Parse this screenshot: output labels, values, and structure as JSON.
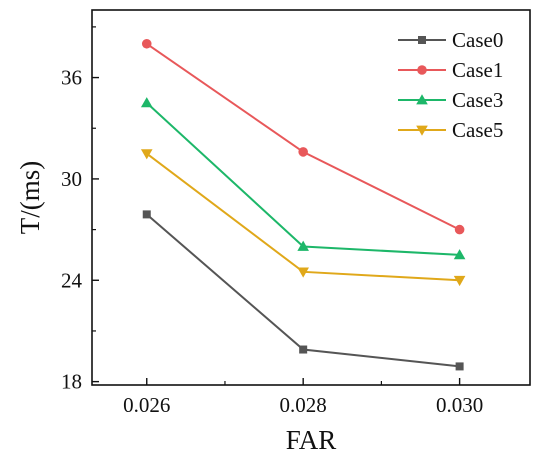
{
  "chart_data": {
    "type": "line",
    "title": "",
    "xlabel": "FAR",
    "ylabel": "T/(ms)",
    "x": [
      0.026,
      0.028,
      0.03
    ],
    "x_tick_labels": [
      "0.026",
      "0.028",
      "0.030"
    ],
    "xlim": [
      0.0253,
      0.0309
    ],
    "ylim": [
      17.8,
      40.0
    ],
    "y_ticks": [
      18,
      24,
      30,
      36
    ],
    "y_tick_labels": [
      "18",
      "24",
      "30",
      "36"
    ],
    "grid": false,
    "legend_position": "top-right",
    "series": [
      {
        "name": "Case0",
        "color": "#555555",
        "marker": "square",
        "values": [
          27.9,
          19.9,
          18.9
        ]
      },
      {
        "name": "Case1",
        "color": "#e8585a",
        "marker": "circle",
        "values": [
          38.0,
          31.6,
          27.0
        ]
      },
      {
        "name": "Case3",
        "color": "#1db769",
        "marker": "triangle-up",
        "values": [
          34.5,
          26.0,
          25.5
        ]
      },
      {
        "name": "Case5",
        "color": "#e0a81a",
        "marker": "triangle-down",
        "values": [
          31.5,
          24.5,
          24.0
        ]
      }
    ]
  }
}
